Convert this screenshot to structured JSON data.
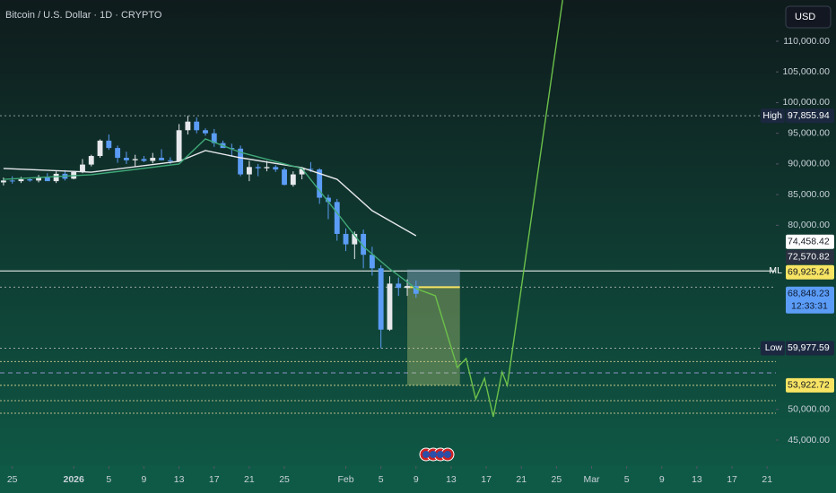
{
  "chart_data": {
    "type": "candlestick",
    "title": "Bitcoin / U.S. Dollar · 1D · CRYPTO",
    "currency": "USD",
    "x": [
      -1,
      0,
      1,
      2,
      3,
      4,
      5,
      6,
      7,
      8,
      9,
      10,
      11,
      12,
      13,
      14,
      15,
      16,
      17,
      18,
      19,
      20,
      21,
      22,
      23,
      24,
      25,
      26,
      27,
      28,
      29,
      30,
      31,
      32,
      33,
      34,
      35,
      36,
      37,
      38,
      39,
      40,
      41,
      42,
      43,
      44,
      45,
      46
    ],
    "open": [
      87000,
      87300,
      87200,
      87500,
      87300,
      87800,
      87200,
      88400,
      87600,
      88700,
      89900,
      91300,
      93800,
      92600,
      91000,
      90600,
      90800,
      90500,
      91000,
      90600,
      90500,
      95500,
      96900,
      95500,
      95000,
      93400,
      92600,
      92500,
      88300,
      89500,
      89300,
      89500,
      89100,
      86600,
      88300,
      89200,
      89100,
      84500,
      83800,
      78600,
      76900,
      78600,
      75200,
      73000,
      63000,
      70500,
      69800,
      70100
    ],
    "high": [
      87800,
      88000,
      87900,
      87800,
      88200,
      88500,
      88800,
      89000,
      88900,
      90800,
      91500,
      94000,
      94800,
      93000,
      92000,
      91500,
      91300,
      91800,
      92400,
      91100,
      96500,
      97855.94,
      97600,
      95800,
      95700,
      93800,
      93300,
      93000,
      90500,
      90000,
      90500,
      89800,
      89400,
      88800,
      89500,
      90300,
      89300,
      85000,
      84300,
      79500,
      79000,
      79300,
      76500,
      73500,
      71700,
      71500,
      71200,
      71000
    ],
    "low": [
      86500,
      86800,
      86900,
      87100,
      87000,
      87400,
      86900,
      87300,
      87500,
      88500,
      89600,
      91000,
      92300,
      90200,
      90000,
      89500,
      90300,
      90100,
      90600,
      90000,
      90300,
      94800,
      95000,
      94600,
      92800,
      92700,
      91200,
      88000,
      87200,
      88000,
      88800,
      88700,
      86500,
      86300,
      87500,
      88700,
      83500,
      81000,
      77500,
      75800,
      74500,
      73000,
      71800,
      59977.59,
      62800,
      68500,
      68500,
      68200
    ],
    "close": [
      87300,
      87200,
      87500,
      87300,
      87800,
      87200,
      88400,
      87600,
      88700,
      89900,
      91300,
      93800,
      92600,
      91000,
      90600,
      90800,
      90500,
      91000,
      90600,
      90500,
      95500,
      96900,
      95500,
      95000,
      93400,
      92600,
      92500,
      88300,
      89500,
      89300,
      89500,
      89100,
      86600,
      88300,
      89200,
      89100,
      84500,
      83800,
      78600,
      76900,
      78600,
      75200,
      73000,
      63000,
      70500,
      69800,
      70100,
      68848.23
    ],
    "up_color": "#e6e8ec",
    "down_color": "#5b9cf6",
    "overlays": [
      {
        "color": "#e6e8ec",
        "x": [
          -1,
          9,
          19,
          22,
          26,
          33,
          37,
          41,
          46
        ],
        "values": [
          89260,
          88670,
          90430,
          92180,
          91010,
          89400,
          87500,
          82390,
          78300
        ]
      },
      {
        "color": "#3fa878",
        "x": [
          -1,
          9,
          19,
          22,
          26,
          33,
          36,
          40,
          43,
          46
        ],
        "values": [
          87500,
          88240,
          89990,
          94080,
          91890,
          89260,
          83850,
          76550,
          72900,
          69690
        ]
      },
      {
        "color": "#6cc04a",
        "x": [
          46,
          48.2,
          50.7,
          51.7,
          52.8,
          53.8,
          54.8,
          55.8,
          56.4,
          62.7
        ],
        "values": [
          69690,
          68520,
          56830,
          58290,
          51720,
          55080,
          48800,
          56100,
          53910,
          116720
        ]
      }
    ],
    "levels": [
      {
        "value": 97855.94,
        "color": "#8a9a9a",
        "dash": "2 3"
      },
      {
        "value": 72570.82,
        "color": "#ffffff",
        "dash": "none"
      },
      {
        "value": 69925.24,
        "color": "#9aa7a7",
        "dash": "2 3"
      },
      {
        "value": 59977.59,
        "color": "#9aa7a7",
        "dash": "2 3"
      },
      {
        "value": 57800,
        "color": "#b7b98a",
        "dash": "2 2"
      },
      {
        "value": 55960,
        "color": "#8e95c9",
        "dash": "5 4"
      },
      {
        "value": 53922.72,
        "color": "#c9c98a",
        "dash": "2 2"
      },
      {
        "value": 51430,
        "color": "#b7b98a",
        "dash": "2 2"
      },
      {
        "value": 49380,
        "color": "#b7b98a",
        "dash": "2 2"
      }
    ],
    "position": {
      "x": [
        45,
        51
      ],
      "stop": 72800,
      "entry": 69925.24,
      "target": 53922.72
    },
    "price_labels": [
      {
        "tag": "High",
        "value": 97855.94,
        "label": "97,855.94",
        "bg": "#1b2840",
        "fg": "#ffffff"
      },
      {
        "value": 74458.42,
        "label": "74,458.42",
        "bg": "#ffffff",
        "fg": "#131722"
      },
      {
        "tag": "ML",
        "value": 72570.82,
        "label": "72,570.82",
        "bg": "#2a3140",
        "fg": "#ffffff"
      },
      {
        "value": 69925.24,
        "label": "69,925.24",
        "bg": "#f7e463",
        "fg": "#131722"
      },
      {
        "value": 68848.23,
        "label": "68,848.23",
        "sub": "12:33:31",
        "bg": "#5b9cf6",
        "fg": "#0d1b33"
      },
      {
        "tag": "Low",
        "value": 59977.59,
        "label": "59,977.59",
        "bg": "#1b2840",
        "fg": "#ffffff"
      },
      {
        "value": 53922.72,
        "label": "53,922.72",
        "bg": "#f7e463",
        "fg": "#131722"
      }
    ],
    "xlim": [
      -1.4,
      87
    ],
    "ylim": [
      40760,
      116720
    ],
    "yticks": [
      {
        "value": 110000,
        "label": "110,000.00"
      },
      {
        "value": 105000,
        "label": "105,000.00"
      },
      {
        "value": 100000,
        "label": "100,000.00"
      },
      {
        "value": 95000,
        "label": "95,000.00"
      },
      {
        "value": 90000,
        "label": "90,000.00"
      },
      {
        "value": 85000,
        "label": "85,000.00"
      },
      {
        "value": 80000,
        "label": "80,000.00"
      },
      {
        "value": 50000,
        "label": "50,000.00"
      },
      {
        "value": 45000,
        "label": "45,000.00"
      }
    ],
    "xticks": [
      {
        "value": 0,
        "label": "25"
      },
      {
        "value": 7,
        "label": "2026"
      },
      {
        "value": 11,
        "label": "5"
      },
      {
        "value": 15,
        "label": "9"
      },
      {
        "value": 19,
        "label": "13"
      },
      {
        "value": 23,
        "label": "17"
      },
      {
        "value": 27,
        "label": "21"
      },
      {
        "value": 31,
        "label": "25"
      },
      {
        "value": 38,
        "label": "Feb"
      },
      {
        "value": 42,
        "label": "5"
      },
      {
        "value": 46,
        "label": "9"
      },
      {
        "value": 50,
        "label": "13"
      },
      {
        "value": 54,
        "label": "17"
      },
      {
        "value": 58,
        "label": "21"
      },
      {
        "value": 62,
        "label": "25"
      },
      {
        "value": 66,
        "label": "Mar"
      },
      {
        "value": 70,
        "label": "5"
      },
      {
        "value": 74,
        "label": "9"
      },
      {
        "value": 78,
        "label": "13"
      },
      {
        "value": 82,
        "label": "17"
      },
      {
        "value": 86,
        "label": "21"
      }
    ]
  }
}
